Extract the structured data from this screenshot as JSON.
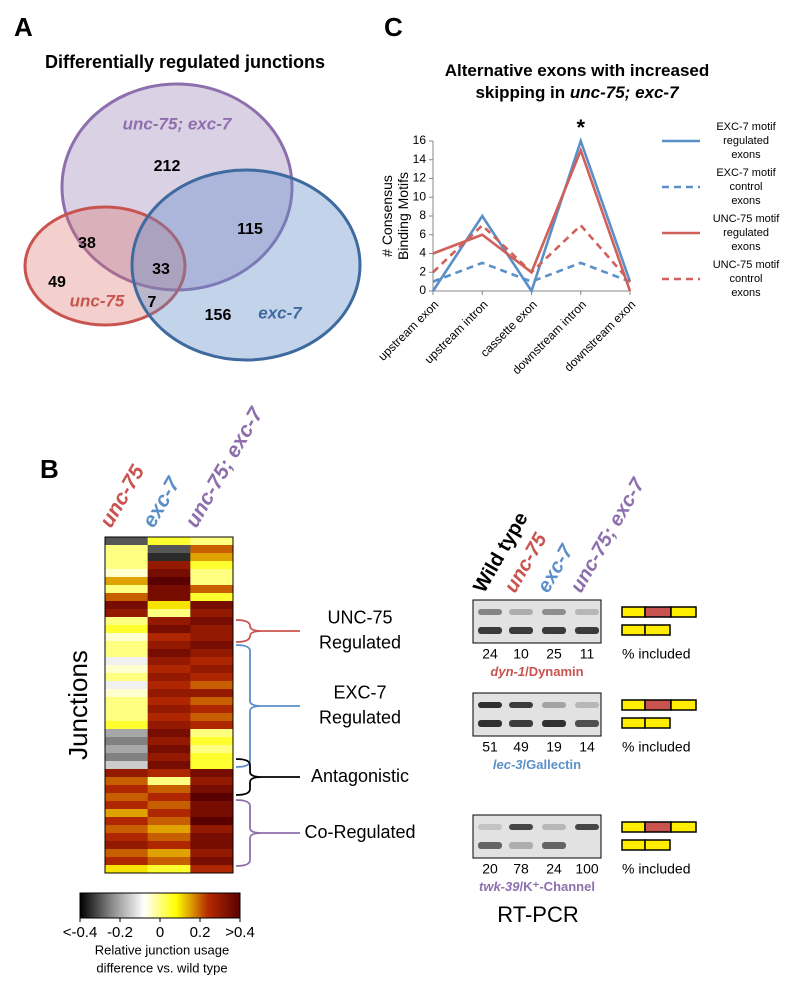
{
  "panels": {
    "a": "A",
    "b": "B",
    "c": "C"
  },
  "venn": {
    "title": "Differentially regulated junctions",
    "sets": [
      {
        "name": "unc-75; exc-7",
        "color": "#8e6fad"
      },
      {
        "name": "unc-75",
        "color": "#c9534f"
      },
      {
        "name": "exc-7",
        "color": "#3f6a9f"
      }
    ],
    "regions": [
      212,
      115,
      38,
      33,
      49,
      7,
      156
    ]
  },
  "chart_data": {
    "type": "line",
    "title_line1": "Alternative exons with increased",
    "title_line2": "skipping in ",
    "title_emphasis": "unc-75; exc-7",
    "ylabel": "# Consensus Binding Motifs",
    "categories": [
      "upstream exon",
      "upstream intron",
      "cassette exon",
      "downstream intron",
      "downstream exon"
    ],
    "series": [
      {
        "name": "EXC-7 motif regulated exons",
        "color": "#5b8fc8",
        "dash": false,
        "values": [
          0,
          8,
          0,
          16,
          1
        ]
      },
      {
        "name": "EXC-7 motif control exons",
        "color": "#5b8fc8",
        "dash": true,
        "values": [
          1,
          3,
          1,
          3,
          1
        ]
      },
      {
        "name": "UNC-75 motif regulated exons",
        "color": "#d0605a",
        "dash": false,
        "values": [
          4,
          6,
          2,
          15,
          0
        ]
      },
      {
        "name": "UNC-75 motif control exons",
        "color": "#d0605a",
        "dash": true,
        "values": [
          2,
          7,
          2,
          7,
          1
        ]
      }
    ],
    "ylim": [
      0,
      16
    ],
    "yticks": [
      0,
      2,
      4,
      6,
      8,
      10,
      12,
      14,
      16
    ],
    "grid": false,
    "legend": "right",
    "annotations": [
      {
        "text": "*",
        "category": "downstream intron"
      }
    ]
  },
  "heatmap": {
    "columns": [
      {
        "name": "unc-75",
        "color": "#c9534f"
      },
      {
        "name": "exc-7",
        "color": "#5b8fc8"
      },
      {
        "name": "unc-75; exc-7",
        "color": "#8e6fad"
      }
    ],
    "ylabel": "Junctions",
    "clim": [
      -0.4,
      0.4
    ],
    "colormap": [
      "#000000",
      "#8a8a8a",
      "#ffffff",
      "#ffff00",
      "#b52a00",
      "#5a0000"
    ],
    "rows": [
      [
        -0.3,
        0.05,
        0.0
      ],
      [
        0.0,
        -0.3,
        0.2
      ],
      [
        0.0,
        -0.35,
        0.15
      ],
      [
        0.0,
        0.3,
        0.05
      ],
      [
        -0.05,
        0.35,
        0.0
      ],
      [
        0.15,
        0.4,
        0.0
      ],
      [
        0.0,
        0.35,
        0.2
      ],
      [
        0.2,
        0.35,
        0.05
      ],
      [
        0.35,
        0.1,
        0.35
      ],
      [
        0.3,
        0.0,
        0.3
      ],
      [
        0.0,
        0.3,
        0.35
      ],
      [
        0.05,
        0.35,
        0.3
      ],
      [
        -0.05,
        0.25,
        0.3
      ],
      [
        0.0,
        0.3,
        0.35
      ],
      [
        0.0,
        0.35,
        0.3
      ],
      [
        -0.1,
        0.3,
        0.25
      ],
      [
        -0.05,
        0.25,
        0.3
      ],
      [
        0.0,
        0.3,
        0.25
      ],
      [
        -0.1,
        0.25,
        0.2
      ],
      [
        -0.05,
        0.3,
        0.3
      ],
      [
        0.0,
        0.25,
        0.2
      ],
      [
        0.0,
        0.3,
        0.25
      ],
      [
        0.0,
        0.25,
        0.2
      ],
      [
        0.05,
        0.3,
        0.25
      ],
      [
        -0.2,
        0.35,
        0.0
      ],
      [
        -0.25,
        0.3,
        0.05
      ],
      [
        -0.2,
        0.35,
        0.0
      ],
      [
        -0.25,
        0.3,
        0.05
      ],
      [
        -0.15,
        0.35,
        0.05
      ],
      [
        0.3,
        0.25,
        0.35
      ],
      [
        0.2,
        0.0,
        0.3
      ],
      [
        0.25,
        0.2,
        0.35
      ],
      [
        0.2,
        0.25,
        0.4
      ],
      [
        0.25,
        0.2,
        0.35
      ],
      [
        0.15,
        0.25,
        0.35
      ],
      [
        0.25,
        0.2,
        0.4
      ],
      [
        0.2,
        0.15,
        0.3
      ],
      [
        0.25,
        0.2,
        0.35
      ],
      [
        0.3,
        0.25,
        0.35
      ],
      [
        0.2,
        0.15,
        0.3
      ],
      [
        0.25,
        0.2,
        0.35
      ],
      [
        0.1,
        0.05,
        0.25
      ]
    ],
    "colorbar_ticks": [
      {
        "value": -0.4,
        "label": "<-0.4"
      },
      -0.2,
      0,
      0.2,
      {
        "value": 0.4,
        "label": ">0.4"
      }
    ],
    "colorbar_label": [
      "Relative junction usage",
      "difference vs. wild type"
    ],
    "groups": [
      {
        "label": "UNC-75 Regulated",
        "color": "#c9534f"
      },
      {
        "label": "EXC-7 Regulated",
        "color": "#5b8fc8"
      },
      {
        "label": "Antagonistic",
        "color": "#000000"
      },
      {
        "label": "Co-Regulated",
        "color": "#8e6fad"
      }
    ]
  },
  "rtpcr": {
    "title": "RT-PCR",
    "lanes": [
      {
        "name": "Wild type",
        "color": "#000000",
        "italic": false
      },
      {
        "name": "unc-75",
        "color": "#c9534f",
        "italic": true
      },
      {
        "name": "exc-7",
        "color": "#5b8fc8",
        "italic": true
      },
      {
        "name": "unc-75; exc-7",
        "color": "#8e6fad",
        "italic": true
      }
    ],
    "gels": [
      {
        "gene": "dyn-1",
        "product": "/Dynamin",
        "color": "#c9534f",
        "percent_included": [
          24,
          10,
          25,
          11
        ],
        "included_label": "% included"
      },
      {
        "gene": "lec-3",
        "product": "/Gallectin",
        "color": "#5b8fc8",
        "percent_included": [
          51,
          49,
          19,
          14
        ],
        "included_label": "% included"
      },
      {
        "gene": "twk-39",
        "product": "/K⁺-Channel",
        "color": "#8e6fad",
        "percent_included": [
          20,
          78,
          24,
          100
        ],
        "included_label": "% included"
      }
    ]
  }
}
